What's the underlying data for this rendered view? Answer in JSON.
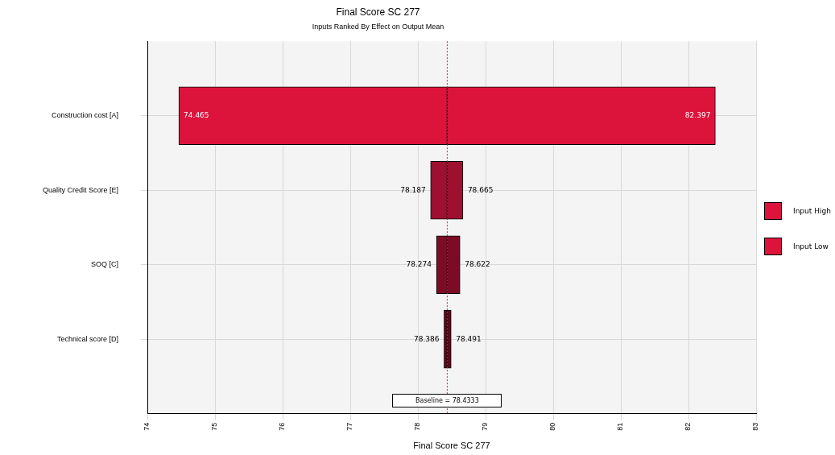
{
  "chart_data": {
    "type": "bar",
    "orientation": "horizontal",
    "title": "Final Score SC 277",
    "subtitle": "Inputs Ranked By Effect on Output Mean",
    "xlabel": "Final Score SC 277",
    "categories": [
      "Construction cost [A]",
      "Quality Credit Score [E]",
      "SOQ [C]",
      "Technical score [D]"
    ],
    "series": [
      {
        "name": "Input High",
        "color": "#dc143c",
        "colors": [
          "#dc143c",
          "#9e1030",
          "#7c0c26",
          "#5c0819"
        ],
        "base": [
          78.4333,
          78.4333,
          78.4333,
          78.4333
        ],
        "values": [
          3.964,
          0.232,
          0.189,
          0.058
        ],
        "value_labels": [
          "82.397",
          "78.665",
          "78.622",
          "78.491"
        ]
      },
      {
        "name": "Input Low",
        "color": "#dc143c",
        "colors": [
          "#dc143c",
          "#9e1030",
          "#7c0c26",
          "#5c0819"
        ],
        "base": [
          78.4333,
          78.4333,
          78.4333,
          78.4333
        ],
        "values": [
          -3.968,
          -0.246,
          -0.159,
          -0.047
        ],
        "value_labels": [
          "74.465",
          "78.187",
          "78.274",
          "78.386"
        ]
      }
    ],
    "ref_lines": [
      {
        "axis": "x",
        "value": 78.4333,
        "label": "Baseline = 78.4333",
        "color": "#dc143c",
        "line_style": "dotted"
      }
    ],
    "xlim": [
      74,
      83
    ],
    "xticks": [
      74,
      75,
      76,
      77,
      78,
      79,
      80,
      81,
      82,
      83
    ],
    "grid": true,
    "legend": "right"
  }
}
